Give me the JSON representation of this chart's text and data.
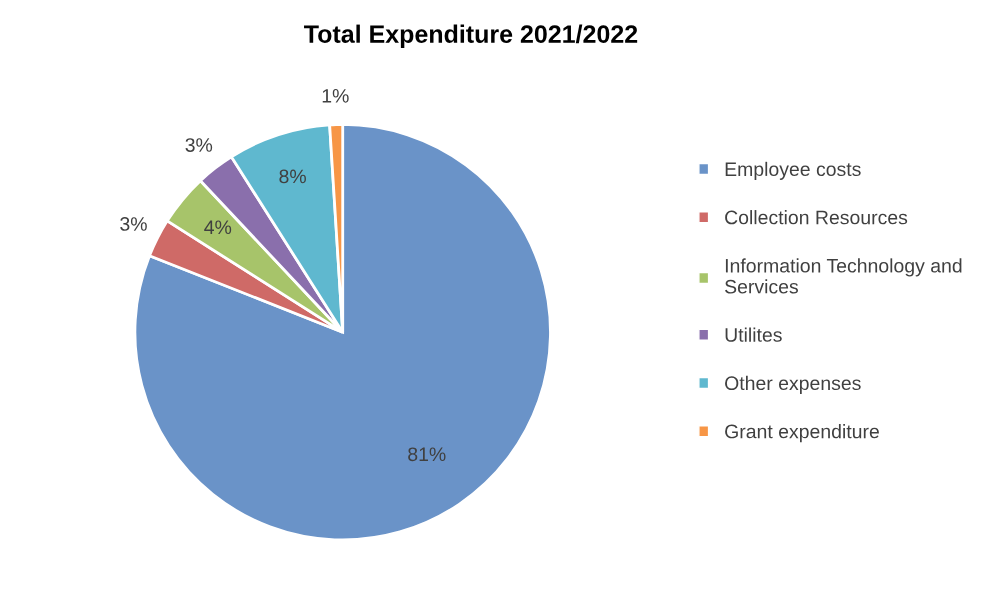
{
  "chart_data": {
    "type": "pie",
    "title": "Total Expenditure 2021/2022",
    "categories": [
      "Employee costs",
      "Collection Resources",
      "Information Technology and Services",
      "Utilites",
      "Other expenses",
      "Grant expenditure"
    ],
    "values": [
      81,
      3,
      4,
      3,
      8,
      1
    ],
    "colors": [
      "#6a93c8",
      "#cf6a67",
      "#a7c46a",
      "#8a6fac",
      "#5fb8cf",
      "#f79646"
    ],
    "value_labels": [
      "81%",
      "3%",
      "4%",
      "3%",
      "8%",
      "1%"
    ],
    "legend": "right"
  }
}
